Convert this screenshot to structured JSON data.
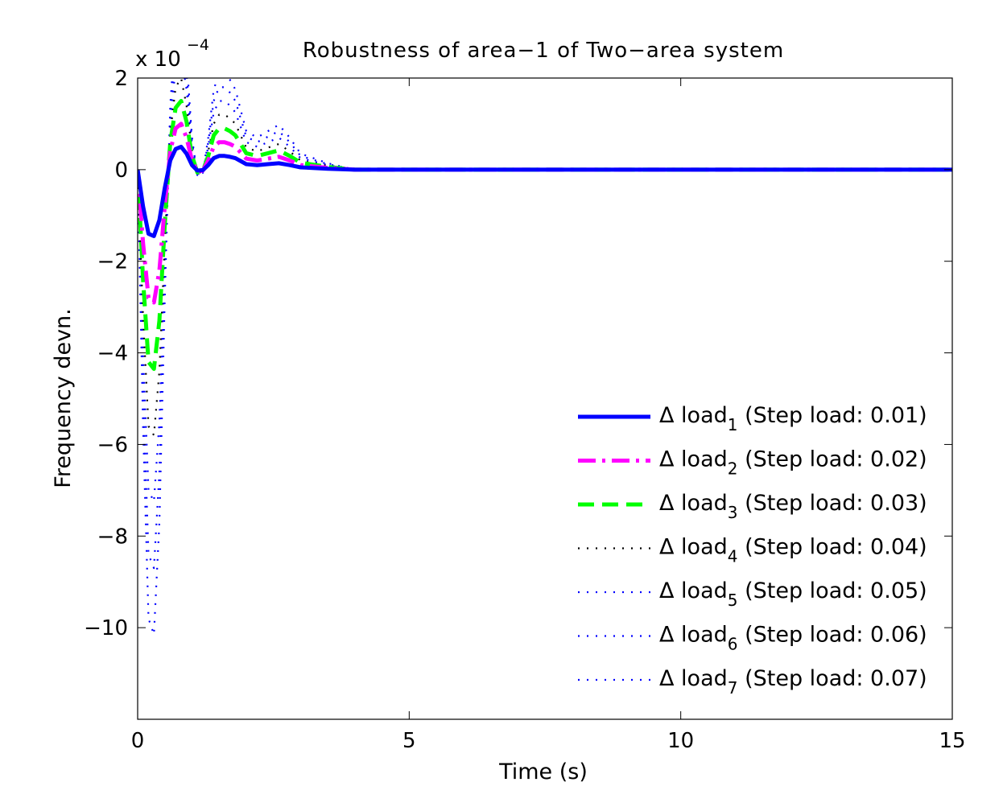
{
  "chart_data": {
    "type": "line",
    "title": "Robustness of area−1 of Two−area system",
    "xlabel": "Time (s)",
    "ylabel": "Frequency devn.",
    "y_multiplier_text": "x 10",
    "y_multiplier_exp": "−4",
    "xlim": [
      0,
      15
    ],
    "ylim": [
      -12,
      2
    ],
    "x_ticks": [
      0,
      5,
      10,
      15
    ],
    "x_tick_labels": [
      "0",
      "5",
      "10",
      "15"
    ],
    "y_ticks": [
      2,
      0,
      -2,
      -4,
      -6,
      -8,
      -10
    ],
    "y_tick_labels": [
      "2",
      "0",
      "−2",
      "−4",
      "−6",
      "−8",
      "−10"
    ],
    "grid": false,
    "legend_position": "lower-right",
    "series": [
      {
        "name": "Δ load",
        "subscript": "1",
        "suffix": " (Step load: 0.01)",
        "color": "#0000ff",
        "style": "solid",
        "scale": 1.0,
        "x": [
          0,
          0.1,
          0.2,
          0.3,
          0.4,
          0.5,
          0.6,
          0.7,
          0.8,
          0.9,
          1.0,
          1.1,
          1.2,
          1.3,
          1.4,
          1.5,
          1.6,
          1.7,
          1.8,
          2.0,
          2.2,
          2.4,
          2.6,
          2.8,
          3.0,
          3.5,
          4,
          5,
          15
        ],
        "y": [
          0,
          -0.8,
          -1.4,
          -1.45,
          -1.1,
          -0.4,
          0.2,
          0.45,
          0.5,
          0.35,
          0.1,
          -0.02,
          -0.01,
          0.1,
          0.25,
          0.3,
          0.3,
          0.28,
          0.25,
          0.12,
          0.1,
          0.12,
          0.14,
          0.1,
          0.05,
          0.02,
          0,
          0,
          0
        ]
      },
      {
        "name": "Δ load",
        "subscript": "2",
        "suffix": " (Step load: 0.02)",
        "color": "#ff00ff",
        "style": "dashdot",
        "scale": 2.0
      },
      {
        "name": "Δ load",
        "subscript": "3",
        "suffix": " (Step load: 0.03)",
        "color": "#00ff00",
        "style": "dashed",
        "scale": 3.0
      },
      {
        "name": "Δ load",
        "subscript": "4",
        "suffix": " (Step load: 0.04)",
        "color": "#000000",
        "style": "dotted",
        "scale": 4.0
      },
      {
        "name": "Δ load",
        "subscript": "5",
        "suffix": " (Step load: 0.05)",
        "color": "#0000ff",
        "style": "dotted",
        "scale": 5.0
      },
      {
        "name": "Δ load",
        "subscript": "6",
        "suffix": " (Step load: 0.06)",
        "color": "#0000ff",
        "style": "dotted",
        "scale": 6.0
      },
      {
        "name": "Δ load",
        "subscript": "7",
        "suffix": " (Step load: 0.07)",
        "color": "#0000ff",
        "style": "dotted",
        "scale": 7.0
      }
    ]
  }
}
